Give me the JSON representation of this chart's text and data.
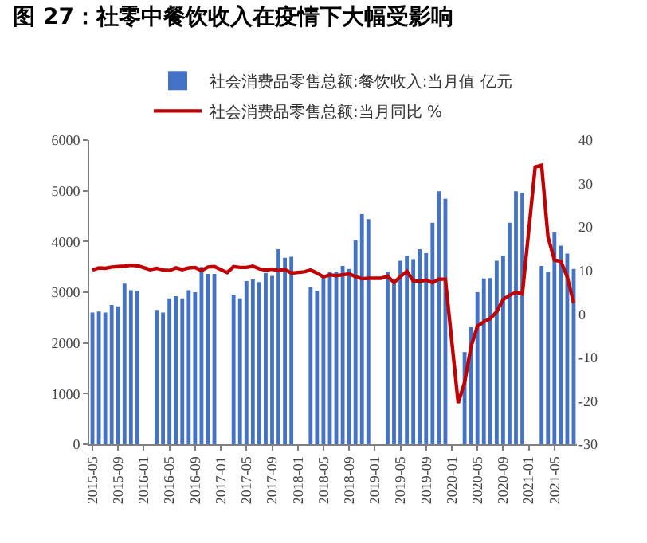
{
  "chart_data": {
    "type": "bar",
    "title": "图 27：社零中餐饮收入在疫情下大幅受影响",
    "categories": [
      "2015-05",
      null,
      null,
      null,
      "2015-09",
      null,
      null,
      null,
      "2016-01",
      null,
      null,
      null,
      "2016-05",
      null,
      null,
      null,
      "2016-09",
      null,
      null,
      null,
      "2017-01",
      null,
      null,
      null,
      "2017-05",
      null,
      null,
      null,
      "2017-09",
      null,
      null,
      null,
      "2018-01",
      null,
      null,
      null,
      "2018-05",
      null,
      null,
      null,
      "2018-09",
      null,
      null,
      null,
      "2019-01",
      null,
      null,
      null,
      "2019-05",
      null,
      null,
      null,
      "2019-09",
      null,
      null,
      null,
      "2020-01",
      null,
      null,
      null,
      "2020-05",
      null,
      null,
      null,
      "2020-09",
      null,
      null,
      null,
      "2021-01",
      null,
      null,
      null,
      "2021-05",
      null,
      null,
      null
    ],
    "series": [
      {
        "name": "社会消费品零售总额:餐饮收入:当月值 亿元",
        "color": "#4472c4",
        "values": [
          2600,
          2620,
          2600,
          2750,
          2720,
          3170,
          3040,
          3030,
          null,
          null,
          2650,
          2600,
          2880,
          2920,
          2880,
          3040,
          3000,
          3500,
          3360,
          3360,
          null,
          null,
          2950,
          2880,
          3220,
          3250,
          3200,
          3380,
          3320,
          3850,
          3680,
          3700,
          null,
          null,
          3100,
          3030,
          3280,
          3400,
          3410,
          3520,
          3460,
          4020,
          4540,
          4440,
          null,
          null,
          3410,
          3180,
          3620,
          3720,
          3650,
          3850,
          3770,
          4370,
          4990,
          4840,
          null,
          null,
          1820,
          2310,
          3000,
          3270,
          3280,
          3620,
          3720,
          4370,
          4990,
          4960,
          null,
          null,
          3520,
          3400,
          4180,
          3920,
          3760,
          3460
        ]
      },
      {
        "name": "社会消费品零售总额:当月同比 %",
        "type": "line",
        "axis": "y2",
        "color": "#c00000",
        "values": [
          10.1,
          10.6,
          10.5,
          10.8,
          10.9,
          11.0,
          11.2,
          11.1,
          null,
          10.2,
          10.5,
          10.1,
          10.0,
          10.6,
          10.2,
          10.6,
          10.7,
          10.0,
          10.8,
          10.9,
          null,
          9.5,
          10.9,
          10.7,
          10.7,
          11.0,
          10.4,
          10.1,
          10.3,
          10.0,
          10.2,
          9.4,
          null,
          9.7,
          10.1,
          9.4,
          8.5,
          9.0,
          8.8,
          9.0,
          9.2,
          8.6,
          8.1,
          8.2,
          null,
          8.2,
          8.7,
          7.2,
          8.6,
          9.8,
          7.6,
          7.5,
          7.8,
          7.2,
          8.0,
          8.0,
          null,
          -20.5,
          -15.8,
          -7.5,
          -2.8,
          -1.8,
          -1.1,
          0.5,
          3.3,
          4.3,
          5.0,
          4.6,
          null,
          33.8,
          34.2,
          17.7,
          12.4,
          12.1,
          8.5,
          2.5
        ]
      }
    ],
    "ylim": [
      0,
      6000
    ],
    "yticks": [
      0,
      1000,
      2000,
      3000,
      4000,
      5000,
      6000
    ],
    "y2lim": [
      -30,
      40
    ],
    "y2ticks": [
      -30,
      -20,
      -10,
      0,
      10,
      20,
      30,
      40
    ],
    "grid": false,
    "legend": "top",
    "marker": "none",
    "line_style": "solid"
  }
}
